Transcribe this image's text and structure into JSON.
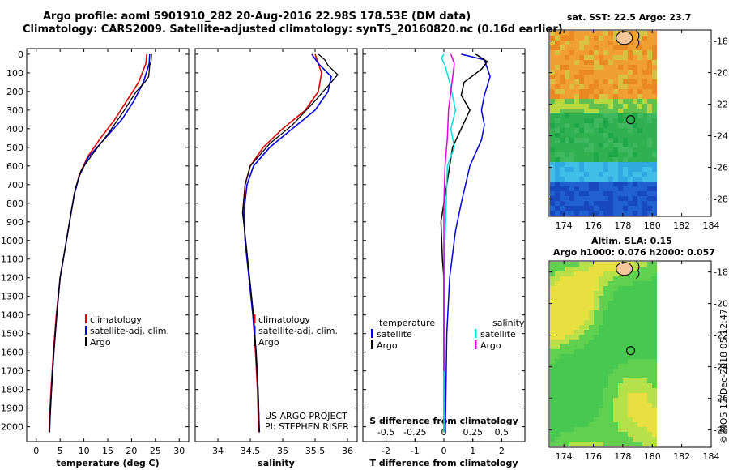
{
  "header": {
    "title_line1": "Argo profile: aoml 5901910_282 20-Aug-2016 22.98S 178.53E (DM data)",
    "title_line2": "Climatology: CARS2009. Satellite-adjusted climatology: synTS_20160820.nc (0.16d earlier)"
  },
  "maps": {
    "sst_title": "sat. SST: 22.5 Argo: 23.7",
    "sla_title1": "Altim. SLA: 0.15",
    "sla_title2": "Argo h1000: 0.076 h2000: 0.057",
    "lon_ticks": [
      "174",
      "176",
      "178",
      "180",
      "182",
      "184"
    ],
    "lat_ticks": [
      "-18",
      "-20",
      "-22",
      "-24",
      "-26",
      "-28"
    ],
    "float_position": {
      "lon": 178.53,
      "lat": -22.98
    }
  },
  "credit": "©IMOS 13-Dec-2018 05:12:47",
  "project": {
    "line1": "US ARGO PROJECT",
    "line2": "PI: STEPHEN RISER"
  },
  "colors": {
    "climatology": "#e00000",
    "satellite": "#0000e0",
    "argo": "#000000",
    "sat_salinity": "#00e0e0",
    "argo_salinity": "#e000e0"
  },
  "chart_data": [
    {
      "type": "line",
      "xlabel": "temperature (deg C)",
      "x_ticks": [
        "0",
        "5",
        "10",
        "15",
        "20",
        "25",
        "30"
      ],
      "xlim": [
        -2,
        32
      ],
      "y_ticks": [
        "0",
        "100",
        "200",
        "300",
        "400",
        "500",
        "600",
        "700",
        "800",
        "900",
        "1000",
        "1100",
        "1200",
        "1300",
        "1400",
        "1500",
        "1600",
        "1700",
        "1800",
        "1900",
        "2000"
      ],
      "ylim": [
        2080,
        -30
      ],
      "legend": [
        "climatology",
        "satellite-adj. clim.",
        "Argo"
      ],
      "legend_position": "bottom-center",
      "series": [
        {
          "name": "climatology",
          "values": [
            [
              23.2,
              0
            ],
            [
              23,
              50
            ],
            [
              21.5,
              150
            ],
            [
              19,
              250
            ],
            [
              16.5,
              350
            ],
            [
              13.5,
              450
            ],
            [
              10.8,
              550
            ],
            [
              9,
              650
            ],
            [
              8,
              750
            ],
            [
              7,
              900
            ],
            [
              6,
              1050
            ],
            [
              5,
              1200
            ],
            [
              4.2,
              1400
            ],
            [
              3.6,
              1600
            ],
            [
              3.1,
              1800
            ],
            [
              2.8,
              1950
            ],
            [
              2.7,
              2030
            ]
          ]
        },
        {
          "name": "satellite-adj. clim.",
          "values": [
            [
              23.8,
              0
            ],
            [
              23.7,
              50
            ],
            [
              22.5,
              150
            ],
            [
              20.5,
              250
            ],
            [
              18,
              350
            ],
            [
              14.5,
              450
            ],
            [
              11,
              550
            ],
            [
              9.1,
              650
            ],
            [
              8,
              750
            ],
            [
              7,
              900
            ],
            [
              6,
              1050
            ],
            [
              5,
              1200
            ],
            [
              4.3,
              1400
            ],
            [
              3.7,
              1600
            ],
            [
              3.2,
              1800
            ],
            [
              2.9,
              1950
            ],
            [
              2.8,
              2030
            ]
          ]
        },
        {
          "name": "Argo",
          "values": [
            [
              24.2,
              0
            ],
            [
              24.1,
              40
            ],
            [
              23.8,
              60
            ],
            [
              23.6,
              120
            ],
            [
              22.8,
              150
            ],
            [
              21,
              200
            ],
            [
              18.5,
              300
            ],
            [
              15,
              430
            ],
            [
              12,
              530
            ],
            [
              9.5,
              620
            ],
            [
              8.2,
              720
            ],
            [
              7.3,
              850
            ],
            [
              6,
              1050
            ],
            [
              5,
              1200
            ],
            [
              4.3,
              1400
            ],
            [
              3.7,
              1600
            ],
            [
              3.2,
              1800
            ],
            [
              2.9,
              1950
            ],
            [
              2.8,
              2030
            ]
          ]
        }
      ]
    },
    {
      "type": "line",
      "xlabel": "salinity",
      "x_ticks": [
        "34",
        "34.5",
        "35",
        "35.5",
        "36"
      ],
      "xlim": [
        33.65,
        36.15
      ],
      "legend": [
        "climatology",
        "satellite-adj. clim.",
        "Argo"
      ],
      "legend_position": "bottom-center",
      "series": [
        {
          "name": "climatology",
          "values": [
            [
              35.5,
              0
            ],
            [
              35.6,
              100
            ],
            [
              35.55,
              200
            ],
            [
              35.35,
              300
            ],
            [
              35.0,
              400
            ],
            [
              34.7,
              500
            ],
            [
              34.5,
              600
            ],
            [
              34.42,
              700
            ],
            [
              34.4,
              850
            ],
            [
              34.42,
              1000
            ],
            [
              34.48,
              1200
            ],
            [
              34.54,
              1400
            ],
            [
              34.58,
              1600
            ],
            [
              34.61,
              1800
            ],
            [
              34.63,
              2030
            ]
          ]
        },
        {
          "name": "satellite-adj. clim.",
          "values": [
            [
              35.45,
              0
            ],
            [
              35.55,
              50
            ],
            [
              35.75,
              120
            ],
            [
              35.7,
              200
            ],
            [
              35.5,
              300
            ],
            [
              35.15,
              400
            ],
            [
              34.8,
              500
            ],
            [
              34.55,
              600
            ],
            [
              34.45,
              700
            ],
            [
              34.4,
              850
            ],
            [
              34.42,
              1000
            ],
            [
              34.48,
              1200
            ],
            [
              34.54,
              1400
            ],
            [
              34.59,
              1600
            ],
            [
              34.62,
              1800
            ],
            [
              34.64,
              2030
            ]
          ]
        },
        {
          "name": "Argo",
          "values": [
            [
              35.55,
              0
            ],
            [
              35.65,
              30
            ],
            [
              35.7,
              60
            ],
            [
              35.85,
              110
            ],
            [
              35.75,
              150
            ],
            [
              35.5,
              250
            ],
            [
              35.15,
              380
            ],
            [
              34.8,
              480
            ],
            [
              34.5,
              600
            ],
            [
              34.42,
              700
            ],
            [
              34.38,
              850
            ],
            [
              34.43,
              1000
            ],
            [
              34.49,
              1200
            ],
            [
              34.55,
              1400
            ],
            [
              34.59,
              1600
            ],
            [
              34.62,
              1800
            ],
            [
              34.64,
              2030
            ]
          ]
        }
      ]
    },
    {
      "type": "line",
      "xlabel": "T difference from climatology",
      "x_ticks": [
        "-2",
        "-1",
        "0",
        "1",
        "2"
      ],
      "xlim": [
        -2.8,
        2.8
      ],
      "s_xlabel": "S difference from climatology",
      "s_x_ticks": [
        "-0.5",
        "-0.25",
        "0",
        "0.25",
        "0.5"
      ],
      "s_xlim": [
        -0.7,
        0.7
      ],
      "legend_temperature_title": "temperature",
      "legend_salinity_title": "salinity",
      "legend_satellite": "satellite",
      "legend_argo": "Argo",
      "series": [
        {
          "name": "temperature satellite",
          "values": [
            [
              0.6,
              0
            ],
            [
              1.4,
              30
            ],
            [
              1.6,
              120
            ],
            [
              1.4,
              220
            ],
            [
              1.3,
              300
            ],
            [
              1.4,
              380
            ],
            [
              1.3,
              460
            ],
            [
              0.9,
              600
            ],
            [
              0.6,
              800
            ],
            [
              0.4,
              950
            ],
            [
              0.2,
              1200
            ],
            [
              0.1,
              1500
            ],
            [
              0.05,
              2030
            ]
          ]
        },
        {
          "name": "temperature Argo",
          "values": [
            [
              1.1,
              0
            ],
            [
              1.5,
              40
            ],
            [
              1.3,
              80
            ],
            [
              0.7,
              150
            ],
            [
              0.6,
              220
            ],
            [
              0.9,
              300
            ],
            [
              0.6,
              400
            ],
            [
              0.3,
              500
            ],
            [
              0.1,
              700
            ],
            [
              -0.1,
              900
            ],
            [
              -0.05,
              1100
            ],
            [
              0,
              1200
            ],
            [
              0,
              1400
            ],
            [
              0,
              1600
            ],
            [
              0,
              2030
            ]
          ]
        },
        {
          "name": "salinity satellite",
          "values": [
            [
              0,
              0
            ],
            [
              -0.02,
              20
            ],
            [
              0.01,
              60
            ],
            [
              0.05,
              150
            ],
            [
              0.1,
              300
            ],
            [
              0.06,
              400
            ],
            [
              0.09,
              500
            ],
            [
              0.03,
              600
            ],
            [
              0.02,
              800
            ],
            [
              0.01,
              1000
            ],
            [
              0,
              1200
            ],
            [
              0,
              2030
            ]
          ]
        },
        {
          "name": "salinity Argo",
          "values": [
            [
              0.06,
              0
            ],
            [
              0.09,
              50
            ],
            [
              0.06,
              200
            ],
            [
              0.04,
              300
            ],
            [
              0.03,
              450
            ],
            [
              0.01,
              600
            ],
            [
              0,
              800
            ],
            [
              0,
              1200
            ],
            [
              0,
              1600
            ],
            [
              0,
              1700
            ]
          ]
        }
      ]
    }
  ]
}
